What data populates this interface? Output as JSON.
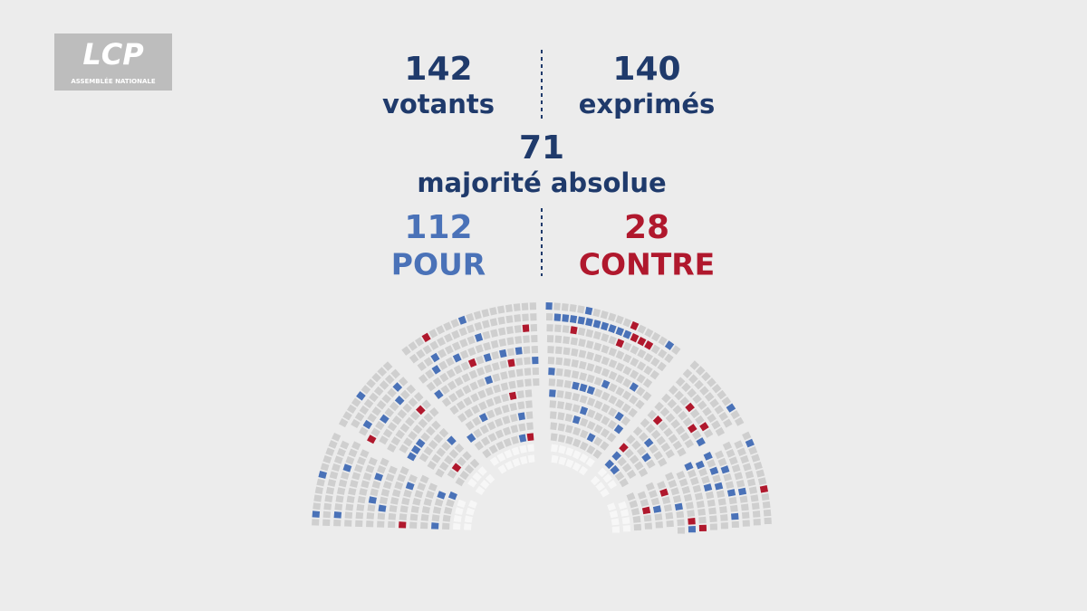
{
  "logo": {
    "name": "LCP",
    "subtitle": "ASSEMBLÉE NATIONALE"
  },
  "votants": {
    "value": 142,
    "label": "votants"
  },
  "exprimes": {
    "value": 140,
    "label": "exprimés"
  },
  "majorite": {
    "value": 71,
    "label": "majorité absolue"
  },
  "pour": {
    "value": 112,
    "label": "POUR"
  },
  "contre": {
    "value": 28,
    "label": "CONTRE"
  }
}
